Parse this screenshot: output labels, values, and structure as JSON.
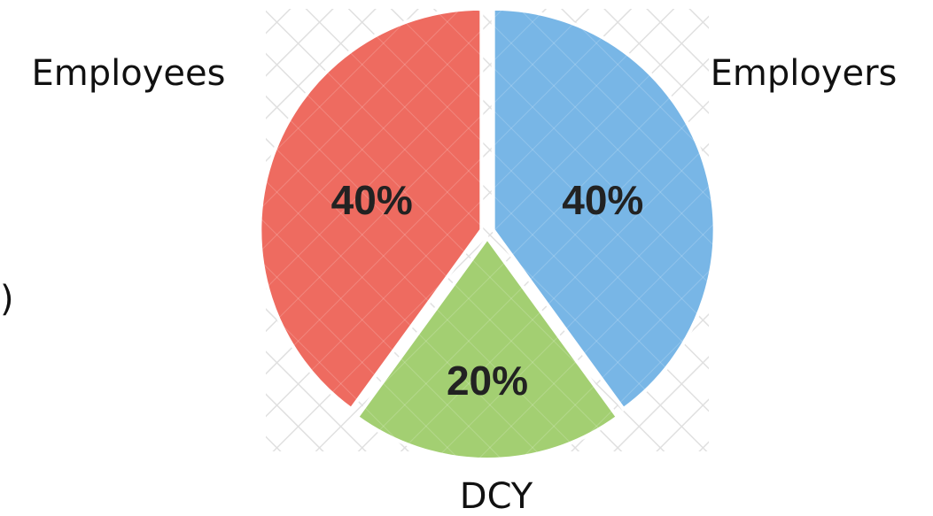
{
  "chart_data": {
    "type": "pie",
    "categories": [
      "Employers",
      "DCY",
      "Employees"
    ],
    "values": [
      40,
      20,
      40
    ],
    "value_labels": [
      "40%",
      "20%",
      "40%"
    ],
    "colors": [
      "#78b6e6",
      "#a3cf72",
      "#ee6b60"
    ],
    "annotations": [
      ")"
    ]
  }
}
